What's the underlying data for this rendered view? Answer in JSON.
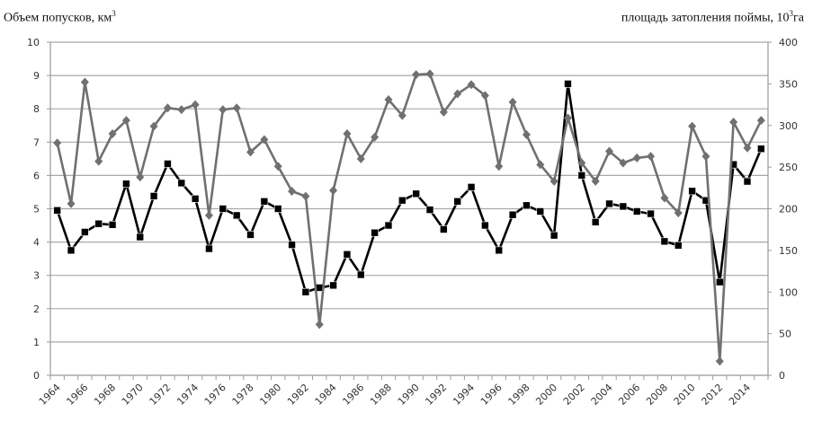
{
  "chart_data": {
    "type": "line",
    "title": "",
    "ylabel_left": "Объем попусков, км",
    "ylabel_left_sup": "3",
    "ylabel_right_pre": "площадь затопления поймы, 10",
    "ylabel_right_sup": "3",
    "ylabel_right_post": "га",
    "ylim_left": [
      0,
      10
    ],
    "ylim_right": [
      0,
      400
    ],
    "yticks_left": [
      0,
      1,
      2,
      3,
      4,
      5,
      6,
      7,
      8,
      9,
      10
    ],
    "yticks_right": [
      0,
      50,
      100,
      150,
      200,
      250,
      300,
      350,
      400
    ],
    "grid": true,
    "x": [
      1964,
      1965,
      1966,
      1967,
      1968,
      1969,
      1970,
      1971,
      1972,
      1973,
      1974,
      1975,
      1976,
      1977,
      1978,
      1979,
      1980,
      1981,
      1982,
      1983,
      1984,
      1985,
      1986,
      1987,
      1988,
      1989,
      1990,
      1991,
      1992,
      1993,
      1994,
      1995,
      1996,
      1997,
      1998,
      1999,
      2000,
      2001,
      2002,
      2003,
      2004,
      2005,
      2006,
      2007,
      2008,
      2009,
      2010,
      2011,
      2012,
      2013,
      2014,
      2015
    ],
    "xtick_labels": [
      "1964",
      "1966",
      "1968",
      "1970",
      "1972",
      "1974",
      "1976",
      "1978",
      "1980",
      "1982",
      "1984",
      "1986",
      "1988",
      "1990",
      "1992",
      "1994",
      "1996",
      "1998",
      "2000",
      "2002",
      "2004",
      "2006",
      "2008",
      "2010",
      "2012",
      "2014"
    ],
    "series": [
      {
        "name": "Объем попусков",
        "axis": "left",
        "color": "#000000",
        "marker": "square",
        "values": [
          4.95,
          3.75,
          4.3,
          4.55,
          4.52,
          5.75,
          4.15,
          5.38,
          6.35,
          5.77,
          5.3,
          3.8,
          5.0,
          4.8,
          4.22,
          5.22,
          5.0,
          3.92,
          2.5,
          2.63,
          2.7,
          3.63,
          3.02,
          4.28,
          4.5,
          5.25,
          5.45,
          4.97,
          4.38,
          5.22,
          5.65,
          4.5,
          3.75,
          4.82,
          5.1,
          4.92,
          4.2,
          8.75,
          6.0,
          4.6,
          5.15,
          5.07,
          4.92,
          4.85,
          4.02,
          3.9,
          5.53,
          5.25,
          2.8,
          6.33,
          5.82,
          6.8
        ]
      },
      {
        "name": "Площадь затопления поймы",
        "axis": "right",
        "color": "#707070",
        "marker": "diamond",
        "values": [
          279,
          206,
          352,
          257,
          290,
          306,
          238,
          299,
          321,
          319,
          325,
          192,
          319,
          321,
          268,
          283,
          251,
          221,
          215,
          61,
          222,
          290,
          260,
          286,
          331,
          312,
          361,
          362,
          316,
          338,
          349,
          336,
          251,
          328,
          289,
          253,
          233,
          309,
          255,
          233,
          269,
          255,
          261,
          263,
          213,
          195,
          299,
          263,
          17,
          304,
          273,
          306
        ]
      }
    ]
  }
}
